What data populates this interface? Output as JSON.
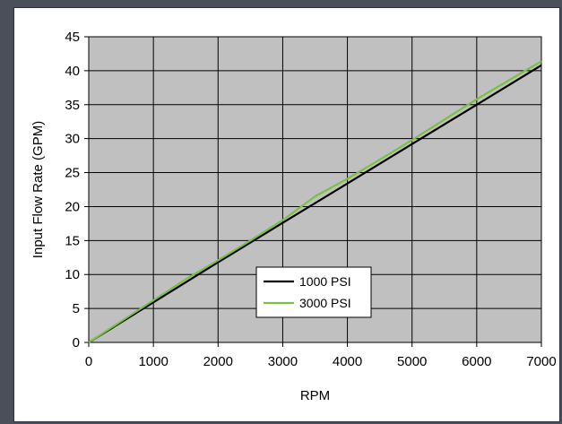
{
  "chart_data": {
    "type": "line",
    "xlabel": "RPM",
    "ylabel": "Input Flow Rate (GPM)",
    "xlim": [
      0,
      7000
    ],
    "ylim": [
      0,
      45
    ],
    "x_ticks": [
      "0",
      "1000",
      "2000",
      "3000",
      "4000",
      "5000",
      "6000",
      "7000"
    ],
    "y_ticks": [
      "0",
      "5",
      "10",
      "15",
      "20",
      "25",
      "30",
      "35",
      "40",
      "45"
    ],
    "grid": true,
    "plot_background": "#c0c0c0",
    "legend_position": "center-bottom",
    "series": [
      {
        "name": "1000 PSI",
        "color": "#000000",
        "x": [
          0,
          1000,
          2000,
          3000,
          4000,
          5000,
          6000,
          7000
        ],
        "y": [
          0,
          5.9,
          11.8,
          17.6,
          23.4,
          29.2,
          35.0,
          40.8
        ]
      },
      {
        "name": "3000 PSI",
        "color": "#7ac142",
        "x": [
          0,
          500,
          1000,
          1500,
          2000,
          2500,
          3000,
          3500,
          4000,
          4500,
          5000,
          5500,
          6000,
          6500,
          7000
        ],
        "y": [
          0,
          3.1,
          6.2,
          9.3,
          12.1,
          15.0,
          18.0,
          21.5,
          24.1,
          26.9,
          29.8,
          32.8,
          35.8,
          38.6,
          41.4
        ]
      }
    ]
  }
}
